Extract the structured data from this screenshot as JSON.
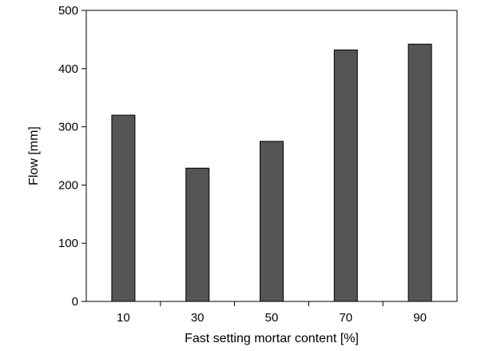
{
  "chart_data": {
    "type": "bar",
    "categories": [
      "10",
      "30",
      "50",
      "70",
      "90"
    ],
    "values": [
      320,
      229,
      275,
      432,
      442
    ],
    "xlabel": "Fast setting mortar content [%]",
    "ylabel": "Flow [mm]",
    "ylim": [
      0,
      500
    ],
    "yticks": [
      0,
      100,
      200,
      300,
      400,
      500
    ],
    "grid": false,
    "legend": "none",
    "bar_color": "#555555",
    "bar_edge_color": "#000000"
  }
}
